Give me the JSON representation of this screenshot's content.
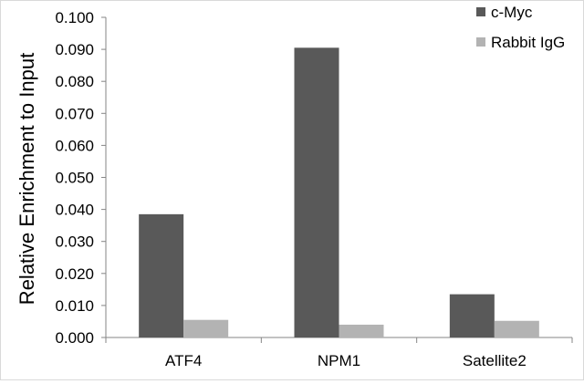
{
  "chart_data": {
    "type": "bar",
    "categories": [
      "ATF4",
      "NPM1",
      "Satellite2"
    ],
    "series": [
      {
        "name": "c-Myc",
        "values": [
          0.0385,
          0.0905,
          0.0135
        ],
        "color": "#595959"
      },
      {
        "name": "Rabbit IgG",
        "values": [
          0.0055,
          0.004,
          0.0052
        ],
        "color": "#b3b3b3"
      }
    ],
    "xlabel": "",
    "ylabel": "Relative Enrichment to Input",
    "ylim": [
      0,
      0.1
    ],
    "yticks": [
      "0.000",
      "0.010",
      "0.020",
      "0.030",
      "0.040",
      "0.050",
      "0.060",
      "0.070",
      "0.080",
      "0.090",
      "0.100"
    ],
    "grid": false,
    "legend_position": "top-right"
  }
}
